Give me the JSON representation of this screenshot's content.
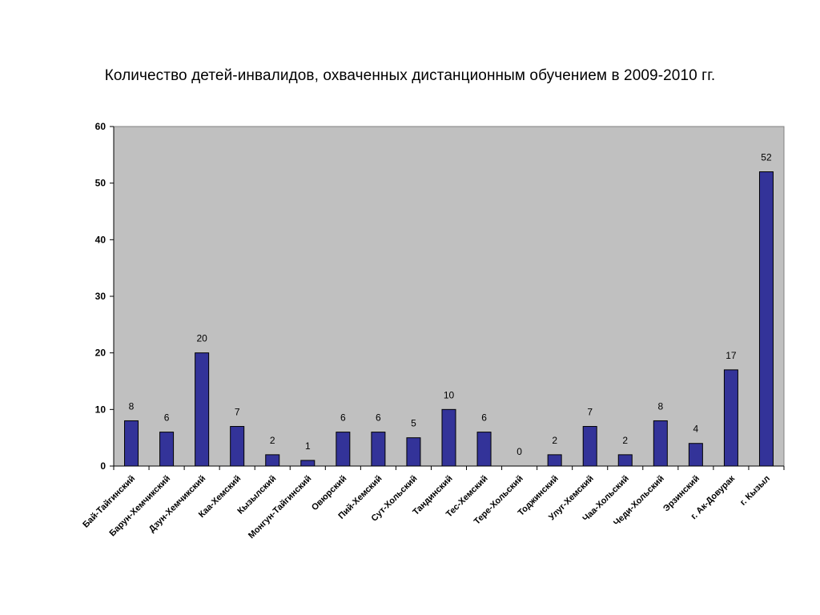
{
  "title": "Количество детей-инвалидов, охваченных дистанционным обучением в 2009-2010 гг.",
  "chart_data": {
    "type": "bar",
    "title": "Количество детей-инвалидов, охваченных дистанционным обучением в 2009-2010 гг.",
    "categories": [
      "Бай-Тайгинский",
      "Барун-Хемчикский",
      "Дзун-Хемчикский",
      "Каа-Хемский",
      "Кызылский",
      "Монгун-Тайгинский",
      "Овюрский",
      "Пий-Хемский",
      "Сут-Хольский",
      "Тандинский",
      "Тес-Хемский",
      "Тере-Хольский",
      "Тоджинский",
      "Улуг-Хемский",
      "Чаа-Хольский",
      "Чеди-Хольский",
      "Эрзинский",
      "г. Ак-Довурак",
      "г. Кызыл"
    ],
    "values": [
      8,
      6,
      20,
      7,
      2,
      1,
      6,
      6,
      5,
      10,
      6,
      0,
      2,
      7,
      2,
      8,
      4,
      17,
      52
    ],
    "ylim": [
      0,
      60
    ],
    "yticks": [
      0,
      10,
      20,
      30,
      40,
      50,
      60
    ],
    "data_labels": true,
    "grid": false,
    "legend": "none",
    "colors": {
      "bar": "#333399",
      "bar_stroke": "#000000",
      "plot_bg": "#c0c0c0",
      "plot_border": "#808080"
    }
  }
}
